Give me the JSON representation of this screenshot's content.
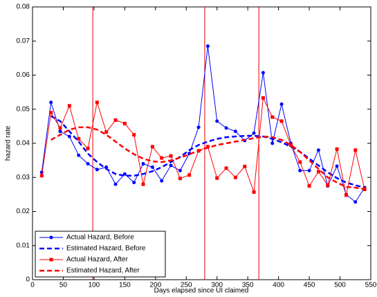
{
  "chart_data": {
    "type": "line",
    "xlabel": "Days elapsed since UI claimed",
    "ylabel": "hazard rate",
    "x": [
      15,
      30,
      45,
      60,
      75,
      90,
      105,
      120,
      135,
      150,
      165,
      180,
      195,
      210,
      225,
      240,
      255,
      270,
      285,
      300,
      315,
      330,
      345,
      360,
      375,
      390,
      405,
      420,
      435,
      450,
      465,
      480,
      495,
      510,
      525,
      540
    ],
    "series": [
      {
        "name": "Actual Hazard, Before",
        "color": "#0000ff",
        "marker": "circle",
        "dashed": false,
        "values": [
          0.0315,
          0.052,
          0.0435,
          0.042,
          0.0365,
          0.034,
          0.0323,
          0.033,
          0.028,
          0.031,
          0.0285,
          0.034,
          0.033,
          0.029,
          0.0335,
          0.032,
          0.037,
          0.0447,
          0.0685,
          0.0465,
          0.0445,
          0.0435,
          0.0408,
          0.043,
          0.0607,
          0.04,
          0.0515,
          0.04,
          0.032,
          0.032,
          0.038,
          0.0275,
          0.0333,
          0.025,
          0.0228,
          0.027
        ]
      },
      {
        "name": "Estimated Hazard, Before",
        "color": "#0000ff",
        "marker": "none",
        "dashed": true,
        "values": [
          null,
          0.048,
          0.0465,
          0.0435,
          0.0405,
          0.037,
          0.0345,
          0.0325,
          0.031,
          0.0305,
          0.0305,
          0.031,
          0.0318,
          0.033,
          0.0345,
          0.036,
          0.038,
          0.0395,
          0.0405,
          0.0413,
          0.0418,
          0.042,
          0.0422,
          0.0422,
          0.042,
          0.0413,
          0.0403,
          0.039,
          0.0375,
          0.0355,
          0.0335,
          0.0315,
          0.0298,
          0.0285,
          0.0277,
          0.027
        ]
      },
      {
        "name": "Actual Hazard, After",
        "color": "#ff0000",
        "marker": "square",
        "dashed": false,
        "values": [
          0.0305,
          0.049,
          0.0445,
          0.051,
          0.0413,
          0.0385,
          0.052,
          0.0433,
          0.0468,
          0.0458,
          0.0425,
          0.028,
          0.039,
          0.0357,
          0.0363,
          0.0297,
          0.0307,
          0.0378,
          0.039,
          0.0298,
          0.0327,
          0.03,
          0.0332,
          0.0257,
          0.0533,
          0.0477,
          0.0465,
          0.0395,
          0.0345,
          0.0275,
          0.0317,
          0.0277,
          0.0383,
          0.0248,
          0.038,
          0.0265
        ]
      },
      {
        "name": "Estimated Hazard, After",
        "color": "#ff0000",
        "marker": "none",
        "dashed": true,
        "values": [
          null,
          0.041,
          0.0425,
          0.044,
          0.0447,
          0.0447,
          0.044,
          0.0425,
          0.0405,
          0.0385,
          0.0368,
          0.0355,
          0.0347,
          0.0345,
          0.035,
          0.0358,
          0.0368,
          0.0378,
          0.0387,
          0.0395,
          0.04,
          0.0405,
          0.041,
          0.0415,
          0.042,
          0.0418,
          0.041,
          0.0395,
          0.0375,
          0.035,
          0.0325,
          0.03,
          0.0285,
          0.0272,
          0.027,
          0.0265
        ]
      }
    ],
    "vlines": [
      98,
      280,
      368
    ],
    "vline_color": "#e00000",
    "xlim": [
      0,
      550
    ],
    "xticks": [
      0,
      50,
      100,
      150,
      200,
      250,
      300,
      350,
      400,
      450,
      500,
      550
    ],
    "ylim": [
      0,
      0.08
    ],
    "yticks": [
      0,
      0.01,
      0.02,
      0.03,
      0.04,
      0.05,
      0.06,
      0.07,
      0.08
    ],
    "legend": "lower left"
  }
}
